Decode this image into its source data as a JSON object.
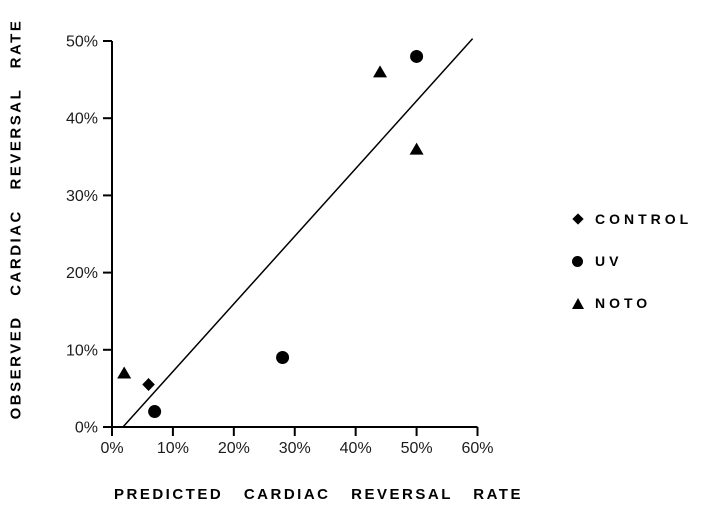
{
  "figure": {
    "background": "#ffffff",
    "ink_color": "#000000",
    "tick_text_color": "#1c1c1c"
  },
  "chart_data": {
    "type": "scatter",
    "title": "",
    "xlabel": "PREDICTED CARDIAC REVERSAL RATE",
    "ylabel": "OBSERVED CARDIAC REVERSAL RATE",
    "xlim": [
      0,
      60
    ],
    "ylim": [
      0,
      50
    ],
    "grid": false,
    "legend_position": "right-outside",
    "x_ticks": [
      {
        "v": 0,
        "label": "0%"
      },
      {
        "v": 10,
        "label": "10%"
      },
      {
        "v": 20,
        "label": "20%"
      },
      {
        "v": 30,
        "label": "30%"
      },
      {
        "v": 40,
        "label": "40%"
      },
      {
        "v": 50,
        "label": "50%"
      },
      {
        "v": 60,
        "label": "60%"
      }
    ],
    "y_ticks": [
      {
        "v": 0,
        "label": "0%"
      },
      {
        "v": 10,
        "label": "10%"
      },
      {
        "v": 20,
        "label": "20%"
      },
      {
        "v": 30,
        "label": "30%"
      },
      {
        "v": 40,
        "label": "40%"
      },
      {
        "v": 50,
        "label": "50%"
      }
    ],
    "fit_line": {
      "x1": 1.8,
      "y1": 0,
      "x2": 59.2,
      "y2": 50.3
    },
    "series": [
      {
        "name": "CONTROL",
        "marker": "diamond",
        "points": [
          {
            "x": 6,
            "y": 5.5
          }
        ]
      },
      {
        "name": "UV",
        "marker": "circle",
        "points": [
          {
            "x": 7,
            "y": 2
          },
          {
            "x": 28,
            "y": 9
          },
          {
            "x": 50,
            "y": 48
          }
        ]
      },
      {
        "name": "NOTO",
        "marker": "triangle",
        "points": [
          {
            "x": 2,
            "y": 7
          },
          {
            "x": 44,
            "y": 46
          },
          {
            "x": 50,
            "y": 36
          }
        ]
      }
    ]
  }
}
